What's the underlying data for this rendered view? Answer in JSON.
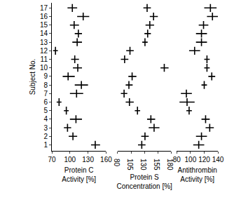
{
  "chart_data": [
    {
      "type": "range",
      "x_label": "Protein C\nActivity [%]",
      "y_label": "Subject No.",
      "xlim": [
        70,
        160
      ],
      "xticks": [
        70,
        100,
        130,
        160
      ],
      "ylim": [
        0.3,
        17.6
      ],
      "yticks": [
        1,
        2,
        3,
        4,
        5,
        6,
        7,
        8,
        9,
        10,
        11,
        12,
        13,
        14,
        15,
        16,
        17
      ],
      "color": "#000000",
      "subjects": [
        1,
        2,
        3,
        4,
        5,
        6,
        7,
        8,
        9,
        10,
        11,
        12,
        13,
        14,
        15,
        16,
        17
      ],
      "low": [
        135,
        98,
        90,
        100,
        90,
        78,
        100,
        108,
        88,
        105,
        102,
        72,
        104,
        108,
        100,
        112,
        96
      ],
      "mid": [
        142,
        105,
        96,
        110,
        94,
        82,
        111,
        119,
        97,
        113,
        108,
        76,
        112,
        114,
        107,
        122,
        104
      ],
      "high": [
        150,
        112,
        102,
        120,
        98,
        86,
        122,
        130,
        108,
        120,
        115,
        80,
        120,
        120,
        115,
        132,
        112
      ]
    },
    {
      "type": "range",
      "x_label": "Protein S\nConcentration [%]",
      "xlim": [
        80,
        180
      ],
      "xticks": [
        80,
        105,
        130,
        155,
        180
      ],
      "color": "#000000",
      "subjects": [
        1,
        2,
        3,
        4,
        5,
        6,
        7,
        8,
        9,
        10,
        11,
        12,
        13,
        14,
        15,
        16,
        17
      ],
      "low": [
        118,
        124,
        138,
        135,
        112,
        95,
        86,
        95,
        100,
        160,
        86,
        96,
        126,
        130,
        132,
        140,
        128
      ],
      "mid": [
        125,
        131,
        148,
        142,
        117,
        102,
        92,
        101,
        107,
        167,
        93,
        103,
        131,
        136,
        140,
        147,
        135
      ],
      "high": [
        132,
        138,
        158,
        150,
        122,
        110,
        98,
        108,
        115,
        175,
        100,
        110,
        136,
        142,
        148,
        155,
        142
      ]
    },
    {
      "type": "range",
      "x_label": "Antithrombin\nActivity [%]",
      "xlim": [
        80,
        140
      ],
      "xticks": [
        80,
        100,
        120,
        140
      ],
      "color": "#000000",
      "subjects": [
        1,
        2,
        3,
        4,
        5,
        6,
        7,
        8,
        9,
        10,
        11,
        12,
        13,
        14,
        15,
        16,
        17
      ],
      "low": [
        104,
        108,
        122,
        116,
        94,
        84,
        86,
        116,
        126,
        120,
        120,
        98,
        108,
        108,
        112,
        124,
        120
      ],
      "mid": [
        112,
        116,
        128,
        122,
        98,
        95,
        94,
        120,
        131,
        124,
        124,
        106,
        116,
        116,
        119,
        132,
        129
      ],
      "high": [
        120,
        124,
        134,
        128,
        102,
        106,
        102,
        124,
        136,
        128,
        128,
        114,
        124,
        124,
        126,
        140,
        138
      ]
    }
  ]
}
